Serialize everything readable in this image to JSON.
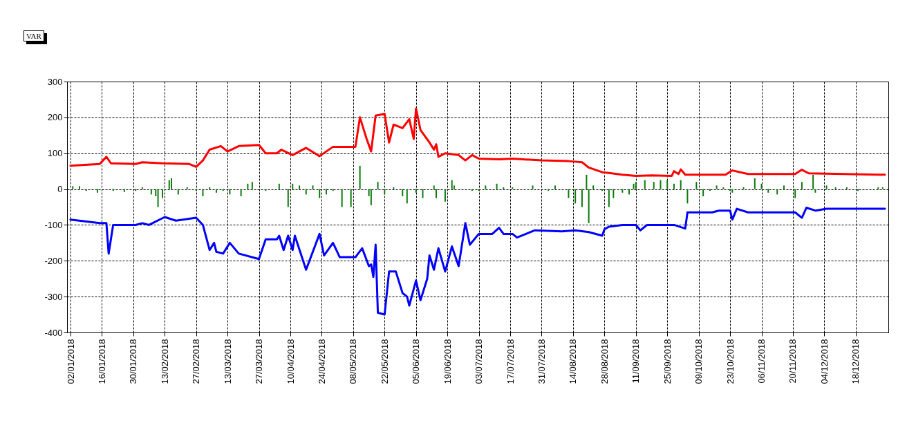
{
  "chart_data": {
    "type": "line",
    "title": "VAR",
    "xlim": [
      "2018-01-02",
      "2018-12-31"
    ],
    "xticks": [
      {
        "value": "2018-01-02",
        "label": "02/01/2018"
      },
      {
        "value": "2018-01-16",
        "label": "16/01/2018"
      },
      {
        "value": "2018-01-30",
        "label": "30/01/2018"
      },
      {
        "value": "2018-02-13",
        "label": "13/02/2018"
      },
      {
        "value": "2018-02-27",
        "label": "27/02/2018"
      },
      {
        "value": "2018-03-13",
        "label": "13/03/2018"
      },
      {
        "value": "2018-03-27",
        "label": "27/03/2018"
      },
      {
        "value": "2018-04-10",
        "label": "10/04/2018"
      },
      {
        "value": "2018-04-24",
        "label": "24/04/2018"
      },
      {
        "value": "2018-05-08",
        "label": "08/05/2018"
      },
      {
        "value": "2018-05-22",
        "label": "22/05/2018"
      },
      {
        "value": "2018-06-05",
        "label": "05/06/2018"
      },
      {
        "value": "2018-06-19",
        "label": "19/06/2018"
      },
      {
        "value": "2018-07-03",
        "label": "03/07/2018"
      },
      {
        "value": "2018-07-17",
        "label": "17/07/2018"
      },
      {
        "value": "2018-07-31",
        "label": "31/07/2018"
      },
      {
        "value": "2018-08-14",
        "label": "14/08/2018"
      },
      {
        "value": "2018-08-28",
        "label": "28/08/2018"
      },
      {
        "value": "2018-09-11",
        "label": "11/09/2018"
      },
      {
        "value": "2018-09-25",
        "label": "25/09/2018"
      },
      {
        "value": "2018-10-09",
        "label": "09/10/2018"
      },
      {
        "value": "2018-10-23",
        "label": "23/10/2018"
      },
      {
        "value": "2018-11-06",
        "label": "06/11/2018"
      },
      {
        "value": "2018-11-20",
        "label": "20/11/2018"
      },
      {
        "value": "2018-12-04",
        "label": "04/12/2018"
      },
      {
        "value": "2018-12-18",
        "label": "18/12/2018"
      }
    ],
    "ylim": [
      -400,
      300
    ],
    "yticks": [
      -400,
      -300,
      -200,
      -100,
      0,
      100,
      200,
      300
    ],
    "grid": true,
    "series": [
      {
        "type": "bar",
        "color": "#0b7a0b",
        "x": [
          "2018-01-03",
          "2018-01-06",
          "2018-01-09",
          "2018-01-14",
          "2018-01-21",
          "2018-01-26",
          "2018-01-31",
          "2018-02-03",
          "2018-02-07",
          "2018-02-09",
          "2018-02-10",
          "2018-02-12",
          "2018-02-15",
          "2018-02-16",
          "2018-02-19",
          "2018-02-23",
          "2018-02-27",
          "2018-03-02",
          "2018-03-05",
          "2018-03-08",
          "2018-03-11",
          "2018-03-14",
          "2018-03-19",
          "2018-03-22",
          "2018-03-24",
          "2018-03-30",
          "2018-04-05",
          "2018-04-09",
          "2018-04-11",
          "2018-04-14",
          "2018-04-17",
          "2018-04-20",
          "2018-04-23",
          "2018-04-26",
          "2018-04-29",
          "2018-05-03",
          "2018-05-07",
          "2018-05-11",
          "2018-05-15",
          "2018-05-16",
          "2018-05-19",
          "2018-05-22",
          "2018-05-26",
          "2018-05-30",
          "2018-06-01",
          "2018-06-05",
          "2018-06-08",
          "2018-06-13",
          "2018-06-14",
          "2018-06-18",
          "2018-06-21",
          "2018-06-22",
          "2018-06-30",
          "2018-07-03",
          "2018-07-06",
          "2018-07-11",
          "2018-07-14",
          "2018-07-18",
          "2018-07-27",
          "2018-08-03",
          "2018-08-06",
          "2018-08-12",
          "2018-08-15",
          "2018-08-18",
          "2018-08-20",
          "2018-08-21",
          "2018-08-23",
          "2018-08-27",
          "2018-08-30",
          "2018-09-01",
          "2018-09-05",
          "2018-09-08",
          "2018-09-10",
          "2018-09-11",
          "2018-09-15",
          "2018-09-19",
          "2018-09-22",
          "2018-09-25",
          "2018-09-28",
          "2018-10-01",
          "2018-10-04",
          "2018-10-08",
          "2018-10-11",
          "2018-10-14",
          "2018-10-17",
          "2018-10-20",
          "2018-10-23",
          "2018-10-24",
          "2018-10-29",
          "2018-11-03",
          "2018-11-06",
          "2018-11-09",
          "2018-11-13",
          "2018-11-16",
          "2018-11-21",
          "2018-11-24",
          "2018-11-29",
          "2018-11-30",
          "2018-12-05",
          "2018-12-09",
          "2018-12-14",
          "2018-12-19",
          "2018-12-28",
          "2018-12-30"
        ],
        "values": [
          8,
          8,
          -5,
          -10,
          -5,
          -8,
          -5,
          5,
          -15,
          -20,
          -50,
          -25,
          25,
          30,
          -15,
          5,
          -5,
          -20,
          5,
          -10,
          -5,
          -15,
          -20,
          15,
          20,
          -5,
          15,
          -50,
          15,
          10,
          -15,
          10,
          -25,
          -15,
          -5,
          -50,
          -50,
          65,
          -20,
          -45,
          20,
          -15,
          5,
          -20,
          -40,
          -10,
          -25,
          10,
          -25,
          -35,
          25,
          10,
          -5,
          -5,
          10,
          15,
          5,
          5,
          10,
          -5,
          10,
          -25,
          -40,
          -50,
          40,
          -95,
          10,
          -5,
          -50,
          -25,
          -10,
          -15,
          15,
          20,
          25,
          20,
          25,
          25,
          15,
          25,
          -40,
          20,
          -20,
          -5,
          10,
          5,
          -5,
          -10,
          5,
          30,
          15,
          -10,
          -15,
          10,
          -25,
          20,
          40,
          -10,
          10,
          5,
          5,
          -5,
          5,
          5
        ]
      },
      {
        "color": "#ff0000",
        "x": [
          "2018-01-02",
          "2018-01-15",
          "2018-01-18",
          "2018-01-20",
          "2018-01-31",
          "2018-02-03",
          "2018-02-12",
          "2018-02-24",
          "2018-02-27",
          "2018-03-02",
          "2018-03-05",
          "2018-03-10",
          "2018-03-13",
          "2018-03-18",
          "2018-03-27",
          "2018-03-30",
          "2018-04-04",
          "2018-04-06",
          "2018-04-11",
          "2018-04-17",
          "2018-04-23",
          "2018-04-29",
          "2018-05-09",
          "2018-05-11",
          "2018-05-14",
          "2018-05-16",
          "2018-05-18",
          "2018-05-22",
          "2018-05-24",
          "2018-05-26",
          "2018-05-30",
          "2018-06-02",
          "2018-06-04",
          "2018-06-05",
          "2018-06-07",
          "2018-06-11",
          "2018-06-13",
          "2018-06-14",
          "2018-06-15",
          "2018-06-18",
          "2018-06-24",
          "2018-06-27",
          "2018-06-30",
          "2018-07-03",
          "2018-07-12",
          "2018-07-18",
          "2018-07-31",
          "2018-08-12",
          "2018-08-18",
          "2018-08-21",
          "2018-08-27",
          "2018-08-30",
          "2018-09-05",
          "2018-09-11",
          "2018-09-18",
          "2018-09-27",
          "2018-09-28",
          "2018-09-30",
          "2018-10-01",
          "2018-10-03",
          "2018-10-21",
          "2018-10-24",
          "2018-10-31",
          "2018-11-21",
          "2018-11-24",
          "2018-11-27",
          "2018-12-31"
        ],
        "values": [
          65,
          70,
          90,
          72,
          70,
          75,
          72,
          70,
          62,
          80,
          110,
          120,
          105,
          120,
          123,
          100,
          100,
          110,
          95,
          115,
          92,
          118,
          118,
          200,
          140,
          105,
          205,
          210,
          130,
          180,
          170,
          195,
          140,
          225,
          165,
          130,
          110,
          125,
          90,
          100,
          95,
          80,
          95,
          85,
          83,
          85,
          80,
          78,
          75,
          60,
          47,
          45,
          40,
          37,
          38,
          37,
          50,
          42,
          55,
          40,
          40,
          52,
          42,
          42,
          54,
          44,
          40
        ]
      },
      {
        "color": "#0000ff",
        "x": [
          "2018-01-02",
          "2018-01-15",
          "2018-01-18",
          "2018-01-19",
          "2018-01-21",
          "2018-01-31",
          "2018-02-03",
          "2018-02-06",
          "2018-02-13",
          "2018-02-18",
          "2018-02-27",
          "2018-03-02",
          "2018-03-05",
          "2018-03-07",
          "2018-03-08",
          "2018-03-11",
          "2018-03-14",
          "2018-03-18",
          "2018-03-27",
          "2018-03-30",
          "2018-04-04",
          "2018-04-05",
          "2018-04-07",
          "2018-04-09",
          "2018-04-11",
          "2018-04-12",
          "2018-04-17",
          "2018-04-23",
          "2018-04-25",
          "2018-04-29",
          "2018-05-02",
          "2018-05-09",
          "2018-05-12",
          "2018-05-15",
          "2018-05-16",
          "2018-05-17",
          "2018-05-18",
          "2018-05-19",
          "2018-05-22",
          "2018-05-24",
          "2018-05-27",
          "2018-05-30",
          "2018-06-01",
          "2018-06-02",
          "2018-06-05",
          "2018-06-07",
          "2018-06-10",
          "2018-06-11",
          "2018-06-13",
          "2018-06-15",
          "2018-06-18",
          "2018-06-21",
          "2018-06-24",
          "2018-06-27",
          "2018-06-29",
          "2018-07-03",
          "2018-07-09",
          "2018-07-12",
          "2018-07-14",
          "2018-07-18",
          "2018-07-20",
          "2018-07-28",
          "2018-08-09",
          "2018-08-15",
          "2018-08-21",
          "2018-08-27",
          "2018-08-28",
          "2018-08-30",
          "2018-09-05",
          "2018-09-11",
          "2018-09-13",
          "2018-09-16",
          "2018-09-28",
          "2018-10-03",
          "2018-10-04",
          "2018-10-15",
          "2018-10-18",
          "2018-10-23",
          "2018-10-24",
          "2018-10-26",
          "2018-10-31",
          "2018-11-21",
          "2018-11-24",
          "2018-11-26",
          "2018-11-30",
          "2018-12-05",
          "2018-12-31"
        ],
        "values": [
          -85,
          -95,
          -95,
          -180,
          -100,
          -100,
          -95,
          -100,
          -78,
          -88,
          -80,
          -100,
          -170,
          -150,
          -175,
          -180,
          -150,
          -180,
          -195,
          -140,
          -140,
          -130,
          -170,
          -130,
          -170,
          -130,
          -225,
          -125,
          -185,
          -150,
          -190,
          -190,
          -165,
          -215,
          -210,
          -245,
          -155,
          -345,
          -350,
          -230,
          -230,
          -290,
          -300,
          -325,
          -255,
          -310,
          -250,
          -185,
          -225,
          -165,
          -230,
          -160,
          -215,
          -95,
          -155,
          -125,
          -125,
          -108,
          -125,
          -125,
          -135,
          -115,
          -118,
          -115,
          -120,
          -130,
          -112,
          -105,
          -100,
          -100,
          -115,
          -100,
          -100,
          -110,
          -65,
          -65,
          -60,
          -60,
          -85,
          -55,
          -65,
          -65,
          -80,
          -52,
          -60,
          -55,
          -55
        ]
      }
    ]
  }
}
